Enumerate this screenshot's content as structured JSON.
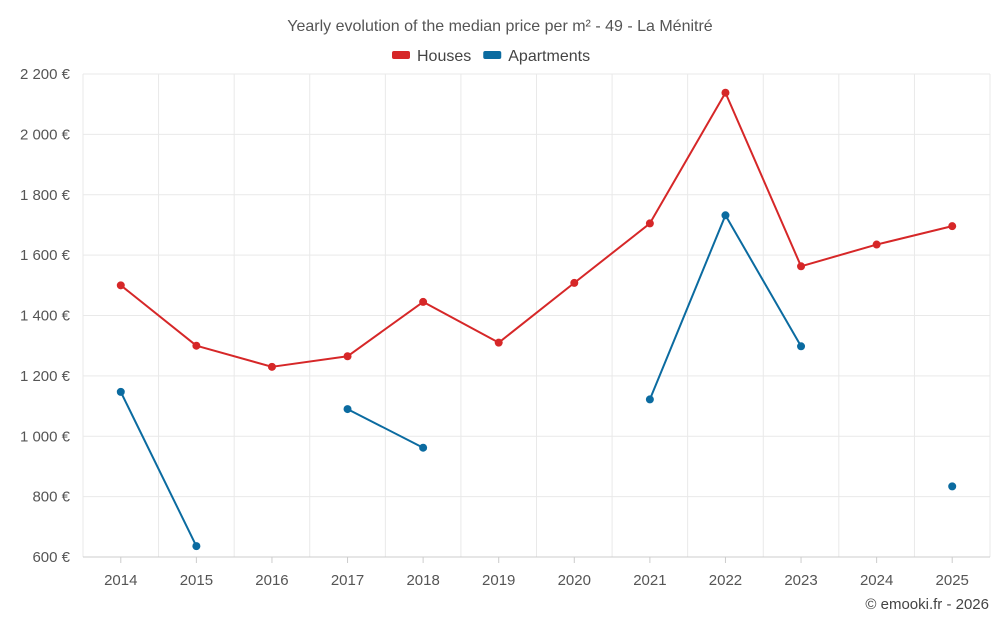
{
  "chart_data": {
    "type": "line",
    "title": "Yearly evolution of the median price per m² - 49 - La Ménitré",
    "categories": [
      "2014",
      "2015",
      "2016",
      "2017",
      "2018",
      "2019",
      "2020",
      "2021",
      "2022",
      "2023",
      "2024",
      "2025"
    ],
    "series": [
      {
        "name": "Houses",
        "color": "#d62728",
        "values": [
          1500,
          1300,
          1230,
          1265,
          1445,
          1310,
          1508,
          1705,
          2138,
          1563,
          1635,
          1696
        ]
      },
      {
        "name": "Apartments",
        "color": "#0b6ba0",
        "values": [
          1147,
          636,
          null,
          1090,
          962,
          null,
          null,
          1122,
          1732,
          1298,
          null,
          834
        ]
      }
    ],
    "ylim": [
      600,
      2200
    ],
    "yticks": [
      600,
      800,
      1000,
      1200,
      1400,
      1600,
      1800,
      2000,
      2200
    ],
    "ytick_labels": [
      "600 €",
      "800 €",
      "1 000 €",
      "1 200 €",
      "1 400 €",
      "1 600 €",
      "1 800 €",
      "2 000 €",
      "2 200 €"
    ],
    "xlabel": "",
    "ylabel": "",
    "grid": true,
    "legend_position": "top-center"
  },
  "footer": {
    "credit": "© emooki.fr - 2026"
  }
}
